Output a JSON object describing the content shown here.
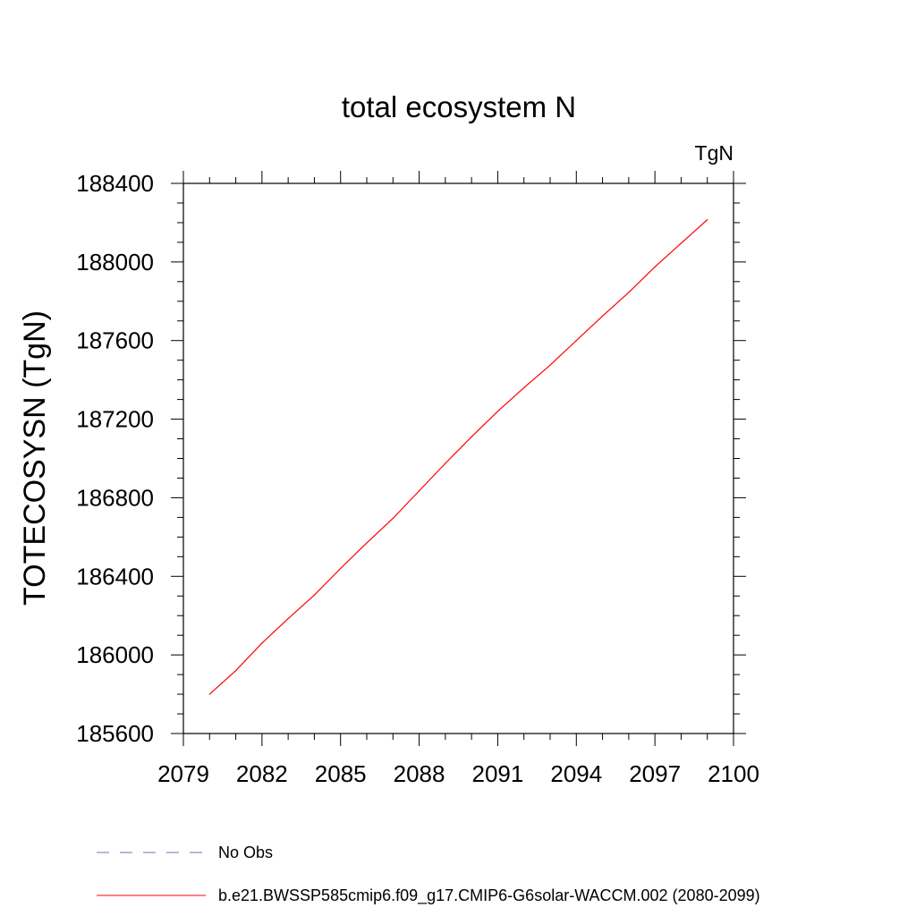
{
  "chart_data": {
    "type": "line",
    "title": "total ecosystem N",
    "units_label": "TgN",
    "ylabel": "TOTECOSYSN  (TgN)",
    "xlabel": "",
    "xlim": [
      2079,
      2100
    ],
    "ylim": [
      185600,
      188400
    ],
    "x_ticks": [
      "2079",
      "2082",
      "2085",
      "2088",
      "2091",
      "2094",
      "2097",
      "2100"
    ],
    "y_ticks": [
      "185600",
      "186000",
      "186400",
      "186800",
      "187200",
      "187600",
      "188000",
      "188400"
    ],
    "grid": false,
    "legend_position": "bottom",
    "legend": [
      {
        "label": "No Obs",
        "color": "#6f6fb5",
        "style": "dashed"
      },
      {
        "label": "b.e21.BWSSP585cmip6.f09_g17.CMIP6-G6solar-WACCM.002 (2080-2099)",
        "color": "#ff0000",
        "style": "solid"
      }
    ],
    "series": [
      {
        "color": "#ff0000",
        "x": [
          2080,
          2081,
          2082,
          2083,
          2084,
          2085,
          2086,
          2087,
          2088,
          2089,
          2090,
          2091,
          2092,
          2093,
          2094,
          2095,
          2096,
          2097,
          2098,
          2099
        ],
        "values": [
          185800,
          185920,
          186060,
          186185,
          186305,
          186440,
          186570,
          186695,
          186835,
          186975,
          187110,
          187240,
          187360,
          187475,
          187600,
          187725,
          187845,
          187975,
          188095,
          188215
        ]
      }
    ]
  }
}
